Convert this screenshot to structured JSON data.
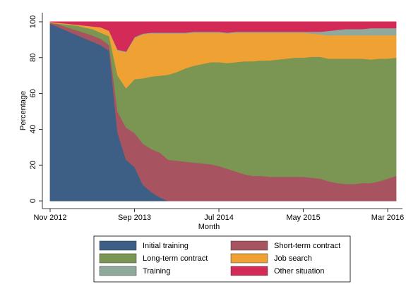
{
  "chart_data": {
    "type": "stacked_area",
    "x": [
      "2012-11",
      "2012-12",
      "2013-01",
      "2013-02",
      "2013-03",
      "2013-04",
      "2013-05",
      "2013-06",
      "2013-07",
      "2013-08",
      "2013-09",
      "2013-10",
      "2013-11",
      "2013-12",
      "2014-01",
      "2014-02",
      "2014-03",
      "2014-04",
      "2014-05",
      "2014-06",
      "2014-07",
      "2014-08",
      "2014-09",
      "2014-10",
      "2014-11",
      "2014-12",
      "2015-01",
      "2015-02",
      "2015-03",
      "2015-04",
      "2015-05",
      "2015-06",
      "2015-07",
      "2015-08",
      "2015-09",
      "2015-10",
      "2015-11",
      "2015-12",
      "2016-01",
      "2016-02",
      "2016-03",
      "2016-04"
    ],
    "xticks": [
      {
        "value": "2012-11",
        "label": "Nov 2012"
      },
      {
        "value": "2013-09",
        "label": "Sep 2013"
      },
      {
        "value": "2014-07",
        "label": "Jul 2014"
      },
      {
        "value": "2015-05",
        "label": "May 2015"
      },
      {
        "value": "2016-03",
        "label": "Mar 2016"
      }
    ],
    "xlabel": "Month",
    "ylabel": "Percentage",
    "ylim": [
      -4.3,
      105.1
    ],
    "yticks": [
      0,
      20,
      40,
      60,
      80,
      100
    ],
    "series": [
      {
        "name": "Initial training",
        "color": "#3d5f85",
        "values": [
          99,
          97,
          95,
          93,
          91,
          89,
          87,
          84,
          38,
          23,
          19,
          9,
          5,
          2,
          0,
          0,
          0,
          0,
          0,
          0,
          0,
          0,
          0,
          0,
          0,
          0,
          0,
          0,
          0,
          0,
          0,
          0,
          0,
          0,
          0,
          0,
          0,
          0,
          0,
          0,
          0,
          0
        ]
      },
      {
        "name": "Short-term contract",
        "color": "#a85460",
        "values": [
          0.5,
          1.5,
          2,
          2.5,
          3,
          3.5,
          3.5,
          3,
          12,
          18,
          19,
          23,
          24,
          25,
          23,
          22.5,
          22,
          21.5,
          21,
          20.5,
          19.5,
          18,
          16.5,
          15,
          14,
          14,
          13.5,
          13.5,
          13.5,
          13.5,
          13.5,
          13,
          12.5,
          11,
          10,
          9.5,
          9.5,
          10,
          10,
          11,
          12.5,
          14
        ]
      },
      {
        "name": "Long-term contract",
        "color": "#7a9652",
        "values": [
          0,
          0.5,
          1.5,
          2.5,
          3,
          3.5,
          3.5,
          5,
          20,
          22,
          30,
          36.5,
          40.5,
          43,
          47.5,
          49.5,
          52,
          54,
          55.5,
          57,
          58,
          59,
          61,
          63,
          64,
          64.5,
          65,
          65.5,
          66,
          66.5,
          66.5,
          67.5,
          68,
          68.5,
          69.5,
          70,
          70,
          69.5,
          69,
          68.5,
          67,
          66
        ]
      },
      {
        "name": "Job search",
        "color": "#f0a133",
        "values": [
          0.5,
          0.5,
          0.5,
          0.5,
          1,
          1.5,
          3,
          3,
          14,
          20,
          23,
          24.5,
          24,
          23.5,
          23,
          21.5,
          19.5,
          18.5,
          17.5,
          16.5,
          16.5,
          16.5,
          16.5,
          16,
          16,
          15.5,
          15.5,
          15,
          14.5,
          14,
          14,
          13,
          12.5,
          13,
          13,
          13,
          13,
          13,
          13.5,
          13,
          13,
          12.5
        ]
      },
      {
        "name": "Training",
        "color": "#8faa9c",
        "values": [
          0,
          0,
          0,
          0,
          0,
          0,
          0,
          0,
          0.5,
          0.5,
          0.5,
          0.5,
          0.5,
          0.5,
          0.5,
          0.5,
          0.5,
          0.5,
          0.5,
          0.5,
          0.5,
          0.5,
          0.5,
          0.5,
          0.5,
          0.5,
          0.5,
          0.5,
          0.5,
          0.5,
          0.5,
          1,
          1.5,
          2.5,
          3,
          3.5,
          3.5,
          3.5,
          4,
          4,
          4,
          4
        ]
      },
      {
        "name": "Other situation",
        "color": "#d42a58",
        "values": [
          0,
          0.5,
          1,
          1.5,
          2,
          2.5,
          3,
          5,
          15.5,
          16.5,
          8.5,
          6.5,
          6,
          6,
          6,
          6,
          6,
          5.5,
          5.5,
          5.5,
          5.5,
          6,
          5.5,
          5.5,
          5.5,
          5.5,
          5.5,
          5.5,
          5.5,
          5.5,
          5.5,
          5.5,
          5.5,
          5,
          4.5,
          4,
          4,
          4,
          3.5,
          3.5,
          3.5,
          3.5
        ]
      }
    ]
  }
}
